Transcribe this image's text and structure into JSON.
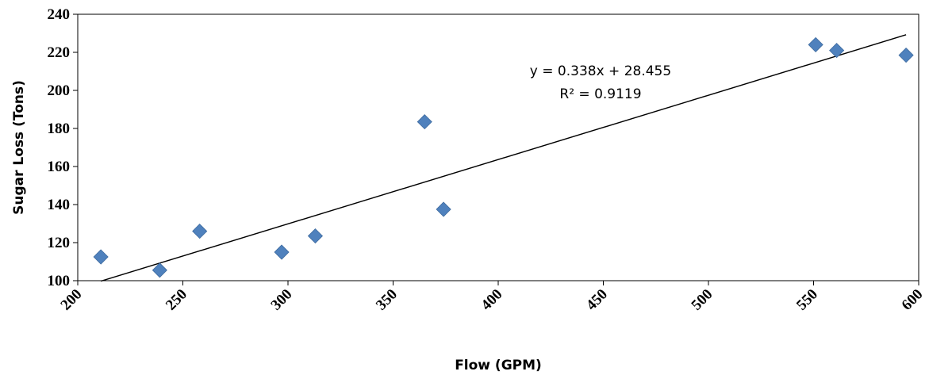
{
  "chart_data": {
    "type": "scatter",
    "title": "",
    "xlabel": "Flow (GPM)",
    "ylabel": "Sugar Loss (Tons)",
    "xlim": [
      200,
      600
    ],
    "ylim": [
      100,
      240
    ],
    "x_ticks": [
      200,
      250,
      300,
      350,
      400,
      450,
      500,
      550,
      600
    ],
    "y_ticks": [
      100,
      120,
      140,
      160,
      180,
      200,
      220,
      240
    ],
    "grid": false,
    "legend": "none",
    "series": [
      {
        "marker": "diamond",
        "color": "#4F81BD",
        "points": [
          {
            "x": 211,
            "y": 112.5
          },
          {
            "x": 239,
            "y": 105.5
          },
          {
            "x": 258,
            "y": 126
          },
          {
            "x": 297,
            "y": 115
          },
          {
            "x": 313,
            "y": 123.5
          },
          {
            "x": 365,
            "y": 183.5
          },
          {
            "x": 374,
            "y": 137.5
          },
          {
            "x": 551,
            "y": 224
          },
          {
            "x": 561,
            "y": 221
          },
          {
            "x": 594,
            "y": 218.5
          }
        ]
      }
    ],
    "trendline": {
      "type": "linear",
      "slope": 0.338,
      "intercept": 28.455,
      "x_range": [
        211,
        594
      ],
      "color": "#000000",
      "equation_label": "y = 0.338x + 28.455",
      "r2_label": "R² = 0.9119"
    }
  }
}
